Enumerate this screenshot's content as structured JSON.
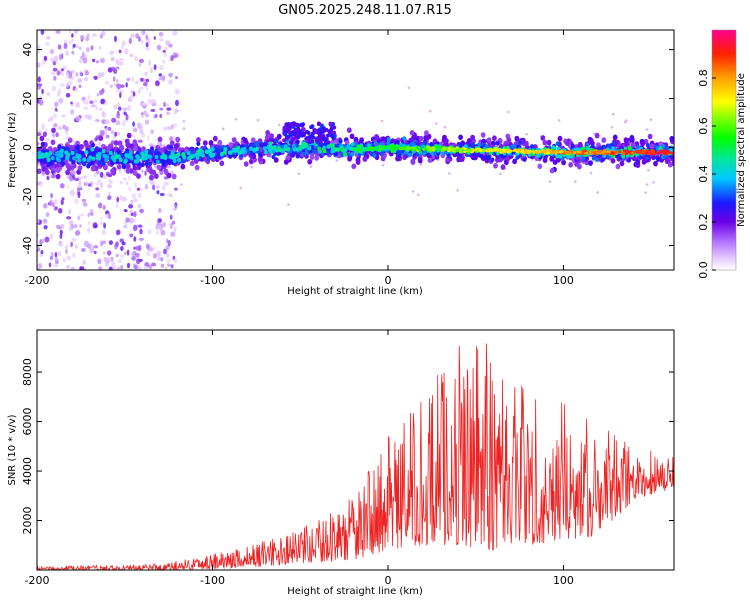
{
  "figure": {
    "title": "GN05.2025.248.11.07.R15"
  },
  "chart_data": [
    {
      "type": "heatmap",
      "title": "GN05.2025.248.11.07.R15",
      "xlabel": "Height of straight line (km)",
      "ylabel": "Frequency (Hz)",
      "xlim": [
        -200,
        163
      ],
      "ylim": [
        -50,
        48
      ],
      "xticks": [
        -200,
        -100,
        0,
        100
      ],
      "yticks": [
        -40,
        -20,
        0,
        20,
        40
      ],
      "colorbar": {
        "label": "Normalized spectral amplitude",
        "range": [
          0,
          1
        ],
        "ticks": [
          0.0,
          0.2,
          0.4,
          0.6,
          0.8
        ],
        "tick_labels": [
          "0.0",
          "0.2",
          "0.4",
          "0.6",
          "0.8"
        ],
        "colormap": "rainbow-magenta-to-red"
      },
      "band": {
        "center_line": [
          [
            -200,
            -3
          ],
          [
            -150,
            -4
          ],
          [
            -120,
            -4
          ],
          [
            -100,
            -2
          ],
          [
            -80,
            -1
          ],
          [
            -60,
            0
          ],
          [
            -40,
            0
          ],
          [
            -20,
            -1
          ],
          [
            0,
            0
          ],
          [
            50,
            -1
          ],
          [
            100,
            -2
          ],
          [
            163,
            -2
          ]
        ],
        "noise_region_x": [
          -200,
          -120
        ],
        "feature_hz_near_x": -40,
        "feature_hz_peak": 10
      }
    },
    {
      "type": "line",
      "title": "",
      "xlabel": "Height of straight line (km)",
      "ylabel": "SNR (10 * v/v)",
      "xlim": [
        -200,
        163
      ],
      "ylim": [
        0,
        9700
      ],
      "xticks": [
        -200,
        -100,
        0,
        100
      ],
      "yticks": [
        2000,
        4000,
        6000,
        8000
      ],
      "color": "#ee2222",
      "envelope": {
        "x": [
          -200,
          -150,
          -125,
          -100,
          -80,
          -60,
          -40,
          -20,
          0,
          20,
          40,
          60,
          80,
          100,
          120,
          140,
          163
        ],
        "low": [
          0,
          0,
          0,
          50,
          100,
          200,
          300,
          400,
          800,
          1000,
          1000,
          800,
          1000,
          1200,
          1400,
          2800,
          3300
        ],
        "high": [
          150,
          200,
          300,
          700,
          1000,
          1400,
          2000,
          3000,
          5400,
          7000,
          9400,
          9500,
          7500,
          6800,
          5800,
          5200,
          4600
        ]
      }
    }
  ]
}
